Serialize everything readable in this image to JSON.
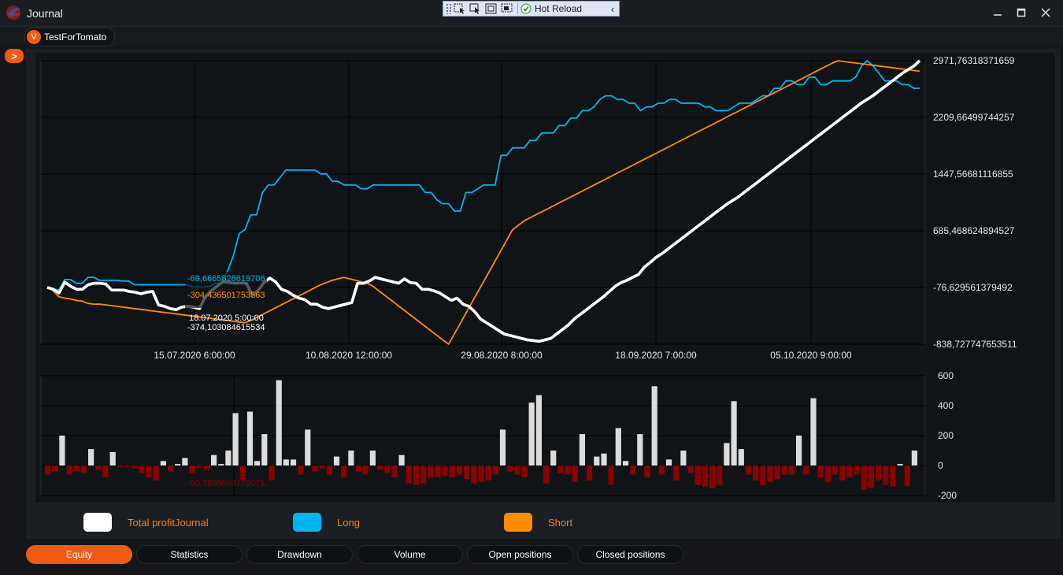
{
  "window": {
    "title": "Journal",
    "minimize_icon": "minimize-icon",
    "maximize_icon": "maximize-icon",
    "close_icon": "close-icon"
  },
  "hot_reload_toolbar": {
    "label": "Hot Reload",
    "tools": [
      "select-element-icon",
      "select-pointer-icon",
      "layout-adorners-icon",
      "track-focus-icon"
    ]
  },
  "connection_tab": {
    "badge": "V",
    "label": "TestForTomato"
  },
  "expand_button": {
    "label": ">"
  },
  "legend": [
    {
      "label": "Total profitJournal",
      "color": "#ffffff"
    },
    {
      "label": "Long",
      "color": "#00b4f0"
    },
    {
      "label": "Short",
      "color": "#ff8c00"
    }
  ],
  "tabs": [
    "Equity",
    "Statistics",
    "Drawdown",
    "Volume",
    "Open positions",
    "Closed positions"
  ],
  "active_tab": "Equity",
  "chart_data": [
    {
      "type": "line",
      "title": "",
      "ylim": [
        -838.727747653511,
        2971.76318371659
      ],
      "y_tick_labels": [
        "2971,76318371659",
        "2209,66499744257",
        "1447,56681116855",
        "685,468624894527",
        "-76,629561379492",
        "-838,727747653511"
      ],
      "y_ticks": [
        2971.76318371659,
        2209.66499744257,
        1447.56681116855,
        685.468624894527,
        -76.629561379492,
        -838.727747653511
      ],
      "x_tick_labels": [
        "15.07.2020 6:00:00",
        "10.08.2020 12:00:00",
        "29.08.2020 8:00:00",
        "18.09.2020 7:00:00",
        "05.10.2020 9:00:00"
      ],
      "series": [
        {
          "name": "Total profitJournal",
          "color": "#ffffff",
          "values": [
            -76,
            -100,
            -150,
            -5,
            -60,
            -100,
            -100,
            -40,
            -20,
            -20,
            -30,
            -110,
            -110,
            -110,
            -130,
            -140,
            -160,
            -140,
            -130,
            -310,
            -330,
            -360,
            -374,
            -340,
            -330,
            -340,
            -360,
            -200,
            -120,
            -60,
            0,
            -10,
            -20,
            -15,
            -20,
            -180,
            -120,
            -10,
            50,
            0,
            -100,
            -130,
            -180,
            -220,
            -240,
            -300,
            -300,
            -340,
            -360,
            -340,
            -320,
            -300,
            -280,
            -20,
            -20,
            10,
            60,
            40,
            20,
            0,
            -20,
            40,
            -10,
            -20,
            -100,
            -100,
            -120,
            -150,
            -200,
            -250,
            -220,
            -300,
            -330,
            -400,
            -500,
            -550,
            -600,
            -650,
            -700,
            -720,
            -740,
            -760,
            -780,
            -790,
            -800,
            -780,
            -760,
            -700,
            -640,
            -580,
            -500,
            -440,
            -380,
            -320,
            -260,
            -200,
            -130,
            -60,
            -10,
            20,
            60,
            100,
            200,
            260,
            330,
            380,
            440,
            500,
            560,
            620,
            680,
            740,
            800,
            860,
            920,
            980,
            1040,
            1090,
            1140,
            1200,
            1260,
            1320,
            1380,
            1440,
            1500,
            1560,
            1620,
            1680,
            1740,
            1800,
            1860,
            1920,
            1980,
            2040,
            2100,
            2160,
            2220,
            2280,
            2340,
            2400,
            2450,
            2500,
            2560,
            2620,
            2680,
            2740,
            2800,
            2850,
            2900,
            2971
          ]
        },
        {
          "name": "Long",
          "color": "#00b4f0",
          "values": [
            -76,
            -90,
            -110,
            30,
            30,
            -20,
            -20,
            60,
            60,
            20,
            20,
            20,
            20,
            10,
            10,
            -40,
            -40,
            -40,
            -40,
            -40,
            -40,
            -40,
            -40,
            -40,
            -40,
            -70,
            -70,
            -70,
            -60,
            -20,
            -20,
            140,
            350,
            650,
            700,
            900,
            900,
            1200,
            1300,
            1300,
            1400,
            1500,
            1500,
            1500,
            1500,
            1500,
            1500,
            1450,
            1450,
            1350,
            1350,
            1300,
            1300,
            1300,
            1250,
            1250,
            1300,
            1300,
            1300,
            1300,
            1300,
            1300,
            1300,
            1300,
            1300,
            1200,
            1200,
            1100,
            1050,
            1050,
            950,
            950,
            1200,
            1200,
            1250,
            1300,
            1300,
            1300,
            1700,
            1700,
            1800,
            1800,
            1800,
            1900,
            1900,
            2000,
            2000,
            2000,
            2100,
            2100,
            2200,
            2200,
            2300,
            2300,
            2350,
            2450,
            2500,
            2500,
            2450,
            2450,
            2400,
            2400,
            2300,
            2350,
            2350,
            2400,
            2400,
            2450,
            2450,
            2400,
            2400,
            2400,
            2400,
            2350,
            2350,
            2300,
            2300,
            2300,
            2350,
            2400,
            2400,
            2400,
            2450,
            2500,
            2500,
            2600,
            2600,
            2700,
            2700,
            2650,
            2650,
            2750,
            2750,
            2650,
            2650,
            2700,
            2700,
            2700,
            2700,
            2750,
            2900,
            2971,
            2900,
            2800,
            2700,
            2700,
            2700,
            2650,
            2650,
            2600,
            2600
          ]
        },
        {
          "name": "Short",
          "color": "#ff8c00",
          "values": [
            -76,
            -120,
            -200,
            -220,
            -230,
            -250,
            -260,
            -290,
            -300,
            -300,
            -310,
            -320,
            -330,
            -340,
            -350,
            -360,
            -370,
            -380,
            -390,
            -400,
            -410,
            -420,
            -430,
            -440,
            -450,
            -460,
            -470,
            -480,
            -490,
            -500,
            -510,
            -520,
            -530,
            -540,
            -550,
            -520,
            -480,
            -440,
            -400,
            -360,
            -320,
            -280,
            -240,
            -200,
            -160,
            -120,
            -80,
            -40,
            -10,
            20,
            40,
            60,
            40,
            20,
            0,
            -20,
            -60,
            -120,
            -180,
            -240,
            -300,
            -360,
            -420,
            -480,
            -540,
            -600,
            -660,
            -720,
            -780,
            -838,
            -700,
            -560,
            -420,
            -280,
            -140,
            0,
            140,
            280,
            420,
            560,
            700,
            760,
            820,
            860,
            900,
            940,
            980,
            1020,
            1060,
            1100,
            1140,
            1180,
            1220,
            1260,
            1300,
            1340,
            1380,
            1420,
            1460,
            1500,
            1540,
            1580,
            1620,
            1660,
            1700,
            1740,
            1780,
            1820,
            1860,
            1900,
            1940,
            1980,
            2020,
            2060,
            2100,
            2140,
            2180,
            2220,
            2260,
            2300,
            2340,
            2380,
            2420,
            2460,
            2500,
            2540,
            2580,
            2620,
            2660,
            2700,
            2740,
            2780,
            2820,
            2860,
            2900,
            2940,
            2971,
            2960,
            2950,
            2940,
            2930,
            2920,
            2910,
            2900,
            2890,
            2880,
            2870,
            2860,
            2850,
            2840,
            2830
          ]
        }
      ],
      "annotations": [
        {
          "text": "-69,6665828619706",
          "color": "#00b4f0",
          "x": "18.07.2020 5:00:00"
        },
        {
          "text": "-304,436501753563",
          "color": "#ff8c00",
          "x": "18.07.2020 5:00:00"
        },
        {
          "text": "18.07.2020 5:00:00",
          "color": "#ffffff"
        },
        {
          "text": "-374,103084615534",
          "color": "#ffffff"
        }
      ],
      "grid": true
    },
    {
      "type": "bar",
      "title": "",
      "ylim": [
        -200,
        600
      ],
      "y_tick_labels": [
        "600",
        "400",
        "200",
        "0",
        "-200"
      ],
      "y_ticks": [
        600,
        400,
        200,
        0,
        -200
      ],
      "positive_color": "#dcdcdc",
      "negative_color": "#8b0000",
      "values": [
        -60,
        -40,
        200,
        -60,
        -40,
        -50,
        110,
        -30,
        -80,
        90,
        -10,
        -10,
        -20,
        -50,
        -80,
        -100,
        30,
        -40,
        10,
        50,
        -50,
        -10,
        -30,
        70,
        10,
        100,
        350,
        -90,
        360,
        30,
        210,
        -100,
        570,
        40,
        40,
        -60,
        240,
        -40,
        -20,
        -60,
        60,
        -80,
        100,
        -40,
        -60,
        100,
        -30,
        -50,
        -80,
        70,
        -120,
        -130,
        -120,
        -80,
        -80,
        -70,
        -80,
        -60,
        -90,
        -120,
        -110,
        -100,
        -60,
        240,
        -40,
        -60,
        -80,
        420,
        470,
        -120,
        100,
        -50,
        -60,
        -110,
        210,
        -100,
        60,
        80,
        -130,
        250,
        30,
        -60,
        210,
        -80,
        530,
        -60,
        40,
        -100,
        100,
        -50,
        -130,
        -140,
        -150,
        -130,
        150,
        430,
        110,
        -60,
        -100,
        -130,
        -110,
        -90,
        -60,
        -60,
        200,
        -60,
        450,
        -80,
        -110,
        -60,
        -100,
        -80,
        -60,
        -160,
        -150,
        -100,
        -130,
        -140,
        10,
        -140,
        100
      ],
      "annotation": "-50,7805093779071",
      "grid": true
    }
  ]
}
